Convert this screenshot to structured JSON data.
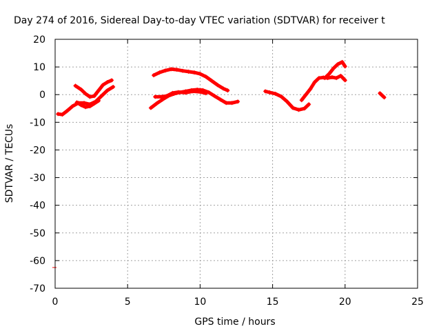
{
  "chart_data": {
    "type": "scatter",
    "title": "Day 274 of 2016, Sidereal Day-to-day VTEC variation (SDTVAR) for receiver t",
    "xlabel": "GPS time / hours",
    "ylabel": "SDTVAR / TECUs",
    "xlim": [
      0,
      25
    ],
    "ylim": [
      -70,
      20
    ],
    "x_ticks": [
      0,
      5,
      10,
      15,
      20,
      25
    ],
    "y_ticks": [
      -70,
      -60,
      -50,
      -40,
      -30,
      -20,
      -10,
      0,
      10,
      20
    ],
    "grid": true,
    "legend": "none",
    "marker": "plus",
    "colors": {
      "series": "#ff0000",
      "grid": "#a0a0a0",
      "axes": "#000000"
    },
    "series": [
      {
        "x": [
          0.2,
          0.5,
          0.8,
          1.2,
          1.6,
          2.0,
          2.4,
          2.8,
          3.2,
          3.6,
          4.0
        ],
        "y": [
          -7,
          -7.2,
          -6,
          -4.2,
          -3,
          -3,
          -3.5,
          -2.5,
          -0.5,
          1.5,
          2.8
        ]
      },
      {
        "x": [
          1.4,
          1.8,
          2.1,
          2.4,
          2.7,
          3.0,
          3.3,
          3.6,
          3.9
        ],
        "y": [
          3.2,
          1.8,
          0.3,
          -0.8,
          -0.5,
          1.5,
          3.5,
          4.5,
          5.2
        ]
      },
      {
        "x": [
          1.5,
          1.8,
          2.1,
          2.4,
          2.7,
          3.0
        ],
        "y": [
          -2.8,
          -3.8,
          -4.5,
          -4.2,
          -3.2,
          -2.2
        ]
      },
      {
        "x": [
          6.8,
          7.2,
          7.6,
          8.0,
          8.4,
          8.8,
          9.2,
          9.6,
          10.0,
          10.4,
          10.8,
          11.2,
          11.6,
          11.9
        ],
        "y": [
          7.0,
          8.0,
          8.7,
          9.2,
          9.0,
          8.6,
          8.3,
          8.0,
          7.5,
          6.5,
          5.0,
          3.5,
          2.2,
          1.5
        ]
      },
      {
        "x": [
          6.6,
          7.0,
          7.4,
          7.8,
          8.2,
          8.6,
          9.0,
          9.4,
          9.8,
          10.2,
          10.6,
          11.0,
          11.4,
          11.8,
          12.2,
          12.6
        ],
        "y": [
          -4.8,
          -3.2,
          -1.8,
          -0.5,
          0.3,
          0.8,
          1.2,
          1.6,
          1.8,
          1.6,
          0.8,
          -0.5,
          -1.8,
          -3.0,
          -3.0,
          -2.5
        ]
      },
      {
        "x": [
          6.9,
          7.3,
          7.7,
          8.1,
          8.5,
          9.0,
          9.5,
          10.0,
          10.4
        ],
        "y": [
          -0.8,
          -0.8,
          -0.5,
          0.6,
          0.9,
          0.7,
          1.2,
          1.0,
          0.5
        ]
      },
      {
        "x": [
          14.5,
          14.8,
          15.2,
          15.6,
          16.0,
          16.4,
          16.8,
          17.2,
          17.5
        ],
        "y": [
          1.2,
          0.8,
          0.3,
          -0.7,
          -2.5,
          -4.8,
          -5.5,
          -5.0,
          -3.5
        ]
      },
      {
        "x": [
          17.0,
          17.3,
          17.6,
          17.9,
          18.2,
          18.5,
          18.8,
          19.1,
          19.4,
          19.7,
          20.0
        ],
        "y": [
          -2.0,
          0.0,
          2.0,
          4.5,
          6.0,
          6.2,
          6.0,
          6.3,
          6.0,
          6.8,
          5.2
        ]
      },
      {
        "x": [
          18.6,
          18.9,
          19.2,
          19.5,
          19.8,
          20.0
        ],
        "y": [
          6.0,
          7.5,
          9.5,
          11.0,
          11.8,
          10.2
        ]
      },
      {
        "x": [
          22.4,
          22.5,
          22.6,
          22.7
        ],
        "y": [
          0.5,
          0.0,
          -0.5,
          -1.0
        ]
      }
    ],
    "outliers": {
      "x": [
        0.0
      ],
      "y": [
        -62.5
      ]
    }
  }
}
